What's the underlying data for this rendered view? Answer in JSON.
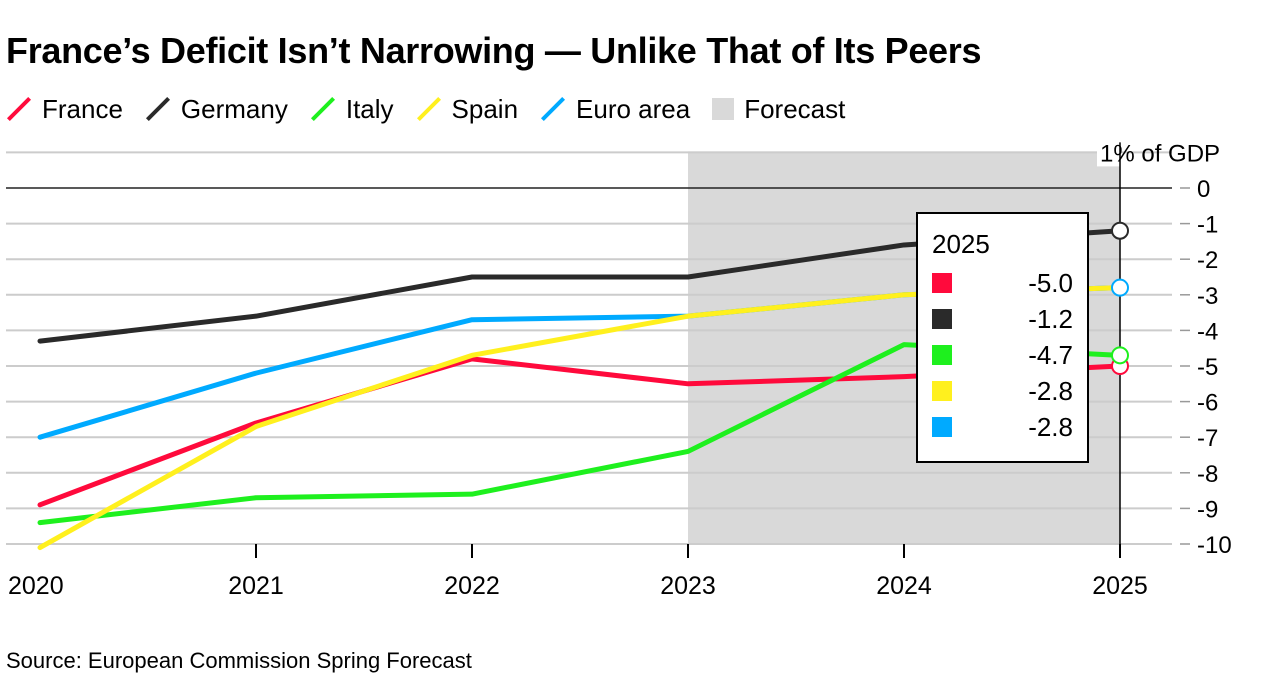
{
  "title": "France’s Deficit Isn’t Narrowing — Unlike That of Its Peers",
  "source": "Source: European Commission Spring Forecast",
  "legend": [
    {
      "label": "France",
      "color": "#ff0a3c",
      "shape": "line"
    },
    {
      "label": "Germany",
      "color": "#2a2a2a",
      "shape": "line"
    },
    {
      "label": "Italy",
      "color": "#1ef01e",
      "shape": "line"
    },
    {
      "label": "Spain",
      "color": "#fff01e",
      "shape": "line"
    },
    {
      "label": "Euro area",
      "color": "#00aaff",
      "shape": "line"
    },
    {
      "label": "Forecast",
      "color": "#d9d9d9",
      "shape": "box"
    }
  ],
  "tooltip": {
    "year": "2025",
    "rows": [
      {
        "value": "-5.0",
        "color": "#ff0a3c"
      },
      {
        "value": "-1.2",
        "color": "#2a2a2a"
      },
      {
        "value": "-4.7",
        "color": "#1ef01e"
      },
      {
        "value": "-2.8",
        "color": "#fff01e"
      },
      {
        "value": "-2.8",
        "color": "#00aaff"
      }
    ]
  },
  "chart_data": {
    "type": "line",
    "title": "France’s Deficit Isn’t Narrowing — Unlike That of Its Peers",
    "ylabel": "% of GDP",
    "x": [
      2020,
      2021,
      2022,
      2023,
      2024,
      2025
    ],
    "x_tick_labels": [
      "2020",
      "2021",
      "2022",
      "2023",
      "2024",
      "2025"
    ],
    "y_ticks": [
      0,
      -1,
      -2,
      -3,
      -4,
      -5,
      -6,
      -7,
      -8,
      -9,
      -10
    ],
    "y_tick_labels": [
      "0",
      "-1",
      "-2",
      "-3",
      "-4",
      "-5",
      "-6",
      "-7",
      "-8",
      "-9",
      "-10"
    ],
    "y_axis_unit_label": "% of GDP",
    "ylim": [
      -10,
      1
    ],
    "grid": true,
    "legend_position": "top-left",
    "forecast_range": [
      2023,
      2025
    ],
    "series": [
      {
        "name": "France",
        "color": "#ff0a3c",
        "values": [
          -8.9,
          -6.6,
          -4.8,
          -5.5,
          -5.3,
          -5.0
        ]
      },
      {
        "name": "Germany",
        "color": "#2a2a2a",
        "values": [
          -4.3,
          -3.6,
          -2.5,
          -2.5,
          -1.6,
          -1.2
        ]
      },
      {
        "name": "Italy",
        "color": "#1ef01e",
        "values": [
          -9.4,
          -8.7,
          -8.6,
          -7.4,
          -4.4,
          -4.7
        ]
      },
      {
        "name": "Spain",
        "color": "#fff01e",
        "values": [
          -10.1,
          -6.7,
          -4.7,
          -3.6,
          -3.0,
          -2.8
        ]
      },
      {
        "name": "Euro area",
        "color": "#00aaff",
        "values": [
          -7.0,
          -5.2,
          -3.7,
          -3.6,
          -3.0,
          -2.8
        ]
      }
    ]
  }
}
